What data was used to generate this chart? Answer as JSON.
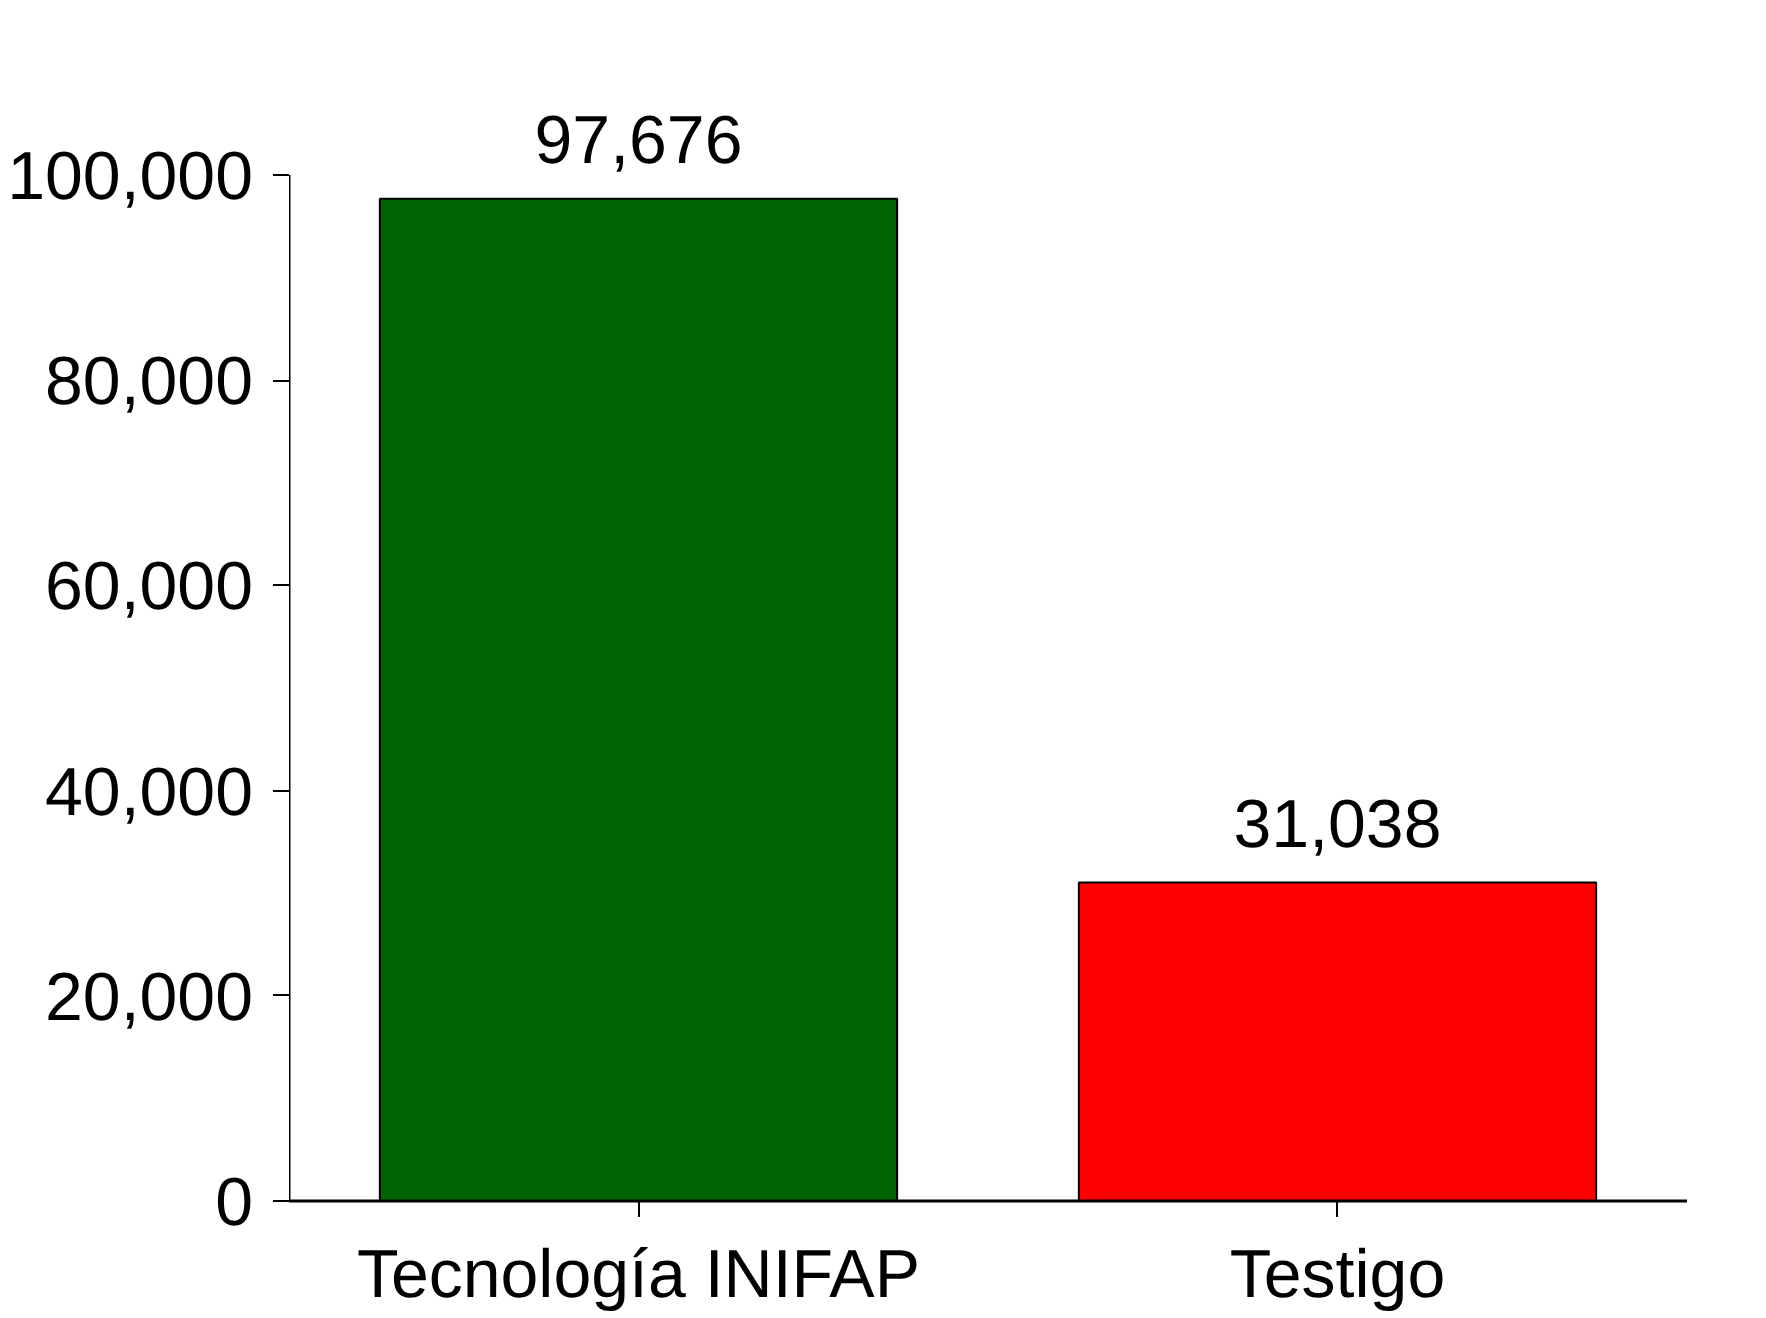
{
  "chart_data": {
    "type": "bar",
    "categories": [
      "Tecnología INIFAP",
      "Testigo"
    ],
    "values": [
      97676,
      31038
    ],
    "colors": [
      "#006400",
      "#ff0000"
    ],
    "ylim": [
      0,
      100000
    ],
    "yticks": [
      {
        "value": 0,
        "label": "0"
      },
      {
        "value": 20000,
        "label": "20,000"
      },
      {
        "value": 40000,
        "label": "40,000"
      },
      {
        "value": 60000,
        "label": "60,000"
      },
      {
        "value": 80000,
        "label": "80,000"
      },
      {
        "value": 100000,
        "label": "100,000"
      }
    ],
    "value_labels": [
      "97,676",
      "31,038"
    ],
    "grid": false
  }
}
